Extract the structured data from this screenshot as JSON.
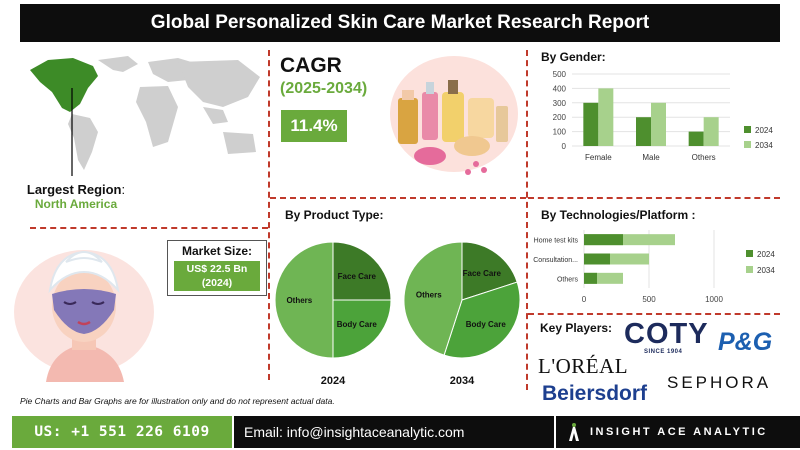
{
  "title": "Global Personalized Skin Care Market Research Report",
  "cagr": {
    "label": "CAGR",
    "years": "(2025-2034)",
    "value": "11.4%"
  },
  "region": {
    "label": "Largest Region",
    "colon": ":",
    "value": "North America"
  },
  "market_size": {
    "label": "Market Size:",
    "value_line1": "US$ 22.5 Bn",
    "value_line2": "(2024)"
  },
  "gender": {
    "title": "By Gender:",
    "chart_data": {
      "type": "bar",
      "categories": [
        "Female",
        "Male",
        "Others"
      ],
      "series": [
        {
          "name": "2024",
          "values": [
            300,
            200,
            100
          ]
        },
        {
          "name": "2034",
          "values": [
            400,
            300,
            200
          ]
        }
      ],
      "yticks": [
        "0",
        "100",
        "200",
        "300",
        "400",
        "500"
      ],
      "ylim": [
        0,
        500
      ],
      "legend": "right",
      "colors": [
        "#4e8f2e",
        "#a7d18c"
      ]
    }
  },
  "product": {
    "title": "By Product Type:",
    "chart_data": [
      {
        "type": "pie",
        "title": "2024",
        "labels": [
          "Face Care",
          "Body Care",
          "Others"
        ],
        "values": [
          25,
          25,
          50
        ],
        "colors": [
          "#3d7a27",
          "#4ca33a",
          "#6fb554"
        ]
      },
      {
        "type": "pie",
        "title": "2034",
        "labels": [
          "Face Care",
          "Body Care",
          "Others"
        ],
        "values": [
          20,
          35,
          45
        ],
        "colors": [
          "#3d7a27",
          "#4ca33a",
          "#6fb554"
        ]
      }
    ]
  },
  "tech": {
    "title": "By Technologies/Platform :",
    "chart_data": {
      "type": "bar",
      "orientation": "horizontal",
      "categories": [
        "Home test kits",
        "Consultation...",
        "Others"
      ],
      "series": [
        {
          "name": "2024",
          "values": [
            300,
            200,
            100
          ]
        },
        {
          "name": "2034",
          "values": [
            700,
            500,
            300
          ]
        }
      ],
      "xticks": [
        "0",
        "500",
        "1000"
      ],
      "xlim": [
        0,
        1000
      ],
      "legend": "right",
      "colors": [
        "#4e8f2e",
        "#a7d18c"
      ]
    }
  },
  "key_players": {
    "title": "Key Players:",
    "coty": "COTY",
    "coty_sub": "SINCE 1904",
    "pg": "P&G",
    "loreal": "L'ORÉAL",
    "sephora": "SEPHORA",
    "beiersdorf": "Beiersdorf"
  },
  "footnote": "Pie Charts and Bar Graphs are for illustration only and do not represent actual data.",
  "footer": {
    "phone": "US: +1 551 226 6109",
    "email": "Email: info@insightaceanalytic.com",
    "brand": "INSIGHT ACE ANALYTIC"
  }
}
